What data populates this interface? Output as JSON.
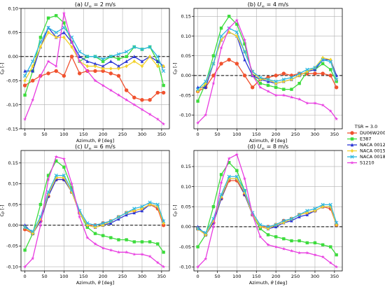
{
  "figure": {
    "legend": {
      "title": "TSR = 3.0",
      "placement": "right-center"
    }
  },
  "series_styles": [
    {
      "name": "DU06W200",
      "color": "#f0522f",
      "marker": "circle"
    },
    {
      "name": "E387",
      "color": "#3cdc3c",
      "marker": "square"
    },
    {
      "name": "NACA 0012",
      "color": "#2a35d6",
      "marker": "triangle-up"
    },
    {
      "name": "NACA 0015",
      "color": "#f2d22e",
      "marker": "diamond"
    },
    {
      "name": "NACA 0018",
      "color": "#2eb8e0",
      "marker": "x"
    },
    {
      "name": "S1210",
      "color": "#e83ce0",
      "marker": "star"
    }
  ],
  "chart_data": [
    {
      "type": "line",
      "title": "(a) U∞ = 2 m/s",
      "xlabel": "Azimuth, θ [deg]",
      "ylabel": "CP [-]",
      "xlim": [
        -10,
        370
      ],
      "ylim": [
        -0.15,
        0.1
      ],
      "xticks": [
        0,
        50,
        100,
        150,
        200,
        250,
        300,
        350
      ],
      "yticks": [
        -0.15,
        -0.1,
        -0.05,
        0.0,
        0.05,
        0.1
      ],
      "ytick_labels": [
        "-0.15",
        "-0.10",
        "-0.05",
        "0.00",
        "0.05",
        "0.10"
      ],
      "grid": true,
      "reference_line_y": 0,
      "x": [
        0,
        20,
        40,
        60,
        80,
        100,
        120,
        140,
        160,
        180,
        200,
        220,
        240,
        260,
        280,
        300,
        320,
        340,
        355
      ],
      "series": [
        {
          "name": "DU06W200",
          "values": [
            -0.06,
            -0.05,
            -0.04,
            -0.035,
            -0.03,
            -0.04,
            0.0,
            -0.035,
            -0.03,
            -0.03,
            -0.03,
            -0.035,
            -0.04,
            -0.07,
            -0.085,
            -0.09,
            -0.09,
            -0.075,
            -0.075
          ]
        },
        {
          "name": "E387",
          "values": [
            -0.08,
            -0.03,
            0.04,
            0.08,
            0.085,
            0.07,
            0.03,
            -0.01,
            0.0,
            0.0,
            -0.01,
            0.0,
            -0.005,
            0.0,
            0.02,
            0.015,
            0.02,
            -0.01,
            -0.06
          ]
        },
        {
          "name": "NACA 0012",
          "values": [
            -0.03,
            -0.03,
            0.02,
            0.06,
            0.04,
            0.05,
            0.03,
            0.0,
            -0.01,
            -0.015,
            -0.02,
            -0.01,
            -0.02,
            -0.01,
            0.0,
            -0.01,
            0.0,
            -0.01,
            -0.02
          ]
        },
        {
          "name": "NACA 0015",
          "values": [
            -0.05,
            -0.02,
            0.02,
            0.05,
            0.04,
            0.04,
            0.02,
            -0.01,
            -0.02,
            -0.02,
            -0.025,
            -0.025,
            -0.025,
            -0.02,
            -0.01,
            -0.02,
            0.0,
            -0.02,
            -0.02
          ]
        },
        {
          "name": "NACA 0018",
          "values": [
            -0.04,
            -0.01,
            0.03,
            0.06,
            0.05,
            0.06,
            0.04,
            0.01,
            0.0,
            0.0,
            -0.005,
            0.0,
            0.005,
            0.01,
            0.02,
            0.015,
            0.02,
            0.0,
            -0.03
          ]
        },
        {
          "name": "S1210",
          "values": [
            -0.13,
            -0.09,
            -0.04,
            -0.01,
            -0.02,
            0.09,
            0.03,
            -0.01,
            -0.03,
            -0.05,
            -0.06,
            -0.07,
            -0.08,
            -0.09,
            -0.1,
            -0.11,
            -0.12,
            -0.13,
            -0.14
          ]
        }
      ]
    },
    {
      "type": "line",
      "title": "(b) U∞ = 4 m/s",
      "xlabel": "Azimuth, θ [deg]",
      "ylabel": "CP [-]",
      "xlim": [
        -10,
        370
      ],
      "ylim": [
        -0.135,
        0.17
      ],
      "xticks": [
        0,
        50,
        100,
        150,
        200,
        250,
        300,
        350
      ],
      "yticks": [
        -0.1,
        -0.05,
        0.0,
        0.05,
        0.1,
        0.15
      ],
      "ytick_labels": [
        "-0.10",
        "-0.05",
        "0.00",
        "0.05",
        "0.10",
        "0.15"
      ],
      "grid": true,
      "reference_line_y": 0,
      "x": [
        0,
        20,
        40,
        60,
        80,
        100,
        120,
        140,
        160,
        180,
        200,
        220,
        240,
        260,
        280,
        300,
        320,
        340,
        355
      ],
      "series": [
        {
          "name": "DU06W200",
          "values": [
            -0.04,
            -0.03,
            0.0,
            0.03,
            0.04,
            0.03,
            0.0,
            -0.03,
            -0.01,
            -0.005,
            0.0,
            0.005,
            0.0,
            0.005,
            0.005,
            0.005,
            0.005,
            0.0,
            -0.03
          ]
        },
        {
          "name": "E387",
          "values": [
            -0.065,
            -0.02,
            0.05,
            0.12,
            0.15,
            0.13,
            0.08,
            0.0,
            -0.02,
            -0.025,
            -0.03,
            -0.035,
            -0.035,
            -0.02,
            0.01,
            0.015,
            0.03,
            0.015,
            -0.015
          ]
        },
        {
          "name": "NACA 0012",
          "values": [
            -0.03,
            -0.03,
            0.03,
            0.09,
            0.11,
            0.1,
            0.04,
            0.0,
            -0.01,
            -0.015,
            -0.02,
            -0.015,
            -0.01,
            0.0,
            0.01,
            0.015,
            0.04,
            0.04,
            0.0
          ]
        },
        {
          "name": "NACA 0015",
          "values": [
            -0.04,
            -0.02,
            0.03,
            0.09,
            0.11,
            0.1,
            0.06,
            0.01,
            -0.01,
            -0.01,
            -0.02,
            -0.015,
            -0.01,
            0.0,
            0.01,
            0.02,
            0.045,
            0.04,
            -0.01
          ]
        },
        {
          "name": "NACA 0018",
          "values": [
            -0.035,
            -0.015,
            0.03,
            0.1,
            0.12,
            0.11,
            0.06,
            0.01,
            -0.005,
            -0.01,
            -0.015,
            -0.01,
            -0.005,
            0.005,
            0.015,
            0.02,
            0.04,
            0.035,
            -0.01
          ]
        },
        {
          "name": "S1210",
          "values": [
            -0.12,
            -0.1,
            -0.02,
            0.07,
            0.12,
            0.14,
            0.09,
            0.0,
            -0.03,
            -0.04,
            -0.05,
            -0.05,
            -0.055,
            -0.06,
            -0.07,
            -0.07,
            -0.075,
            -0.09,
            -0.11
          ]
        }
      ]
    },
    {
      "type": "line",
      "title": "(c) U∞ = 6 m/s",
      "xlabel": "Azimuth, θ [deg]",
      "ylabel": "CP [-]",
      "xlim": [
        -10,
        370
      ],
      "ylim": [
        -0.11,
        0.18
      ],
      "xticks": [
        0,
        50,
        100,
        150,
        200,
        250,
        300,
        350
      ],
      "yticks": [
        -0.1,
        -0.05,
        0.0,
        0.05,
        0.1,
        0.15
      ],
      "ytick_labels": [
        "-0.10",
        "-0.05",
        "0.00",
        "0.05",
        "0.10",
        "0.15"
      ],
      "grid": true,
      "reference_line_y": 0,
      "x": [
        0,
        20,
        40,
        60,
        80,
        100,
        120,
        140,
        160,
        180,
        200,
        220,
        240,
        260,
        280,
        300,
        320,
        340,
        355
      ],
      "series": [
        {
          "name": "DU06W200",
          "values": [
            -0.01,
            -0.02,
            0.01,
            0.07,
            0.11,
            0.11,
            0.08,
            0.03,
            0.0,
            0.0,
            0.005,
            0.01,
            0.02,
            0.03,
            0.035,
            0.04,
            0.05,
            0.04,
            0.0
          ]
        },
        {
          "name": "E387",
          "values": [
            -0.06,
            -0.02,
            0.05,
            0.12,
            0.155,
            0.14,
            0.09,
            0.03,
            -0.005,
            -0.02,
            -0.025,
            -0.03,
            -0.035,
            -0.035,
            -0.04,
            -0.04,
            -0.04,
            -0.045,
            -0.065
          ]
        },
        {
          "name": "NACA 0012",
          "values": [
            0.0,
            -0.02,
            0.01,
            0.07,
            0.11,
            0.11,
            0.08,
            0.03,
            0.0,
            -0.005,
            0.0,
            0.005,
            0.015,
            0.025,
            0.03,
            0.035,
            0.05,
            0.045,
            0.01
          ]
        },
        {
          "name": "NACA 0015",
          "values": [
            -0.005,
            -0.02,
            0.015,
            0.075,
            0.115,
            0.115,
            0.08,
            0.03,
            0.0,
            -0.005,
            0.0,
            0.01,
            0.02,
            0.03,
            0.035,
            0.04,
            0.05,
            0.045,
            0.005
          ]
        },
        {
          "name": "NACA 0018",
          "values": [
            -0.005,
            -0.015,
            0.02,
            0.08,
            0.12,
            0.12,
            0.085,
            0.035,
            0.005,
            0.0,
            0.005,
            0.01,
            0.02,
            0.03,
            0.04,
            0.045,
            0.055,
            0.05,
            0.01
          ]
        },
        {
          "name": "S1210",
          "values": [
            -0.1,
            -0.08,
            0.0,
            0.11,
            0.165,
            0.16,
            0.1,
            0.02,
            -0.03,
            -0.045,
            -0.055,
            -0.06,
            -0.065,
            -0.065,
            -0.07,
            -0.07,
            -0.075,
            -0.09,
            -0.1
          ]
        }
      ]
    },
    {
      "type": "line",
      "title": "(d) U∞ = 8 m/s",
      "xlabel": "Azimuth, θ [deg]",
      "ylabel": "CP [-]",
      "xlim": [
        -10,
        370
      ],
      "ylim": [
        -0.11,
        0.19
      ],
      "xticks": [
        0,
        50,
        100,
        150,
        200,
        250,
        300,
        350
      ],
      "yticks": [
        -0.1,
        -0.05,
        0.0,
        0.05,
        0.1,
        0.15
      ],
      "ytick_labels": [
        "-0.10",
        "-0.05",
        "0.00",
        "0.05",
        "0.10",
        "0.15"
      ],
      "grid": true,
      "reference_line_y": 0,
      "x": [
        0,
        20,
        40,
        60,
        80,
        100,
        120,
        140,
        160,
        180,
        200,
        220,
        240,
        260,
        280,
        300,
        320,
        340,
        355
      ],
      "series": [
        {
          "name": "DU06W200",
          "values": [
            -0.005,
            -0.02,
            0.01,
            0.07,
            0.115,
            0.115,
            0.08,
            0.03,
            0.0,
            0.0,
            0.005,
            0.015,
            0.02,
            0.03,
            0.035,
            0.04,
            0.05,
            0.045,
            0.005
          ]
        },
        {
          "name": "E387",
          "values": [
            -0.05,
            -0.02,
            0.05,
            0.13,
            0.16,
            0.14,
            0.09,
            0.03,
            -0.005,
            -0.02,
            -0.025,
            -0.03,
            -0.035,
            -0.035,
            -0.04,
            -0.04,
            -0.045,
            -0.05,
            -0.07
          ]
        },
        {
          "name": "NACA 0012",
          "values": [
            0.0,
            -0.02,
            0.01,
            0.07,
            0.12,
            0.12,
            0.08,
            0.03,
            0.0,
            -0.005,
            0.0,
            0.01,
            0.015,
            0.025,
            0.03,
            0.04,
            0.05,
            0.05,
            0.01
          ]
        },
        {
          "name": "NACA 0015",
          "values": [
            -0.005,
            -0.02,
            0.015,
            0.075,
            0.12,
            0.12,
            0.085,
            0.03,
            0.0,
            -0.005,
            0.005,
            0.01,
            0.02,
            0.03,
            0.035,
            0.04,
            0.05,
            0.05,
            0.005
          ]
        },
        {
          "name": "NACA 0018",
          "values": [
            -0.005,
            -0.015,
            0.02,
            0.08,
            0.125,
            0.125,
            0.09,
            0.035,
            0.005,
            0.0,
            0.005,
            0.015,
            0.02,
            0.03,
            0.04,
            0.045,
            0.055,
            0.055,
            0.01
          ]
        },
        {
          "name": "S1210",
          "values": [
            -0.1,
            -0.08,
            0.0,
            0.11,
            0.17,
            0.18,
            0.12,
            0.03,
            -0.025,
            -0.045,
            -0.05,
            -0.055,
            -0.06,
            -0.065,
            -0.065,
            -0.07,
            -0.075,
            -0.09,
            -0.1
          ]
        }
      ]
    }
  ]
}
